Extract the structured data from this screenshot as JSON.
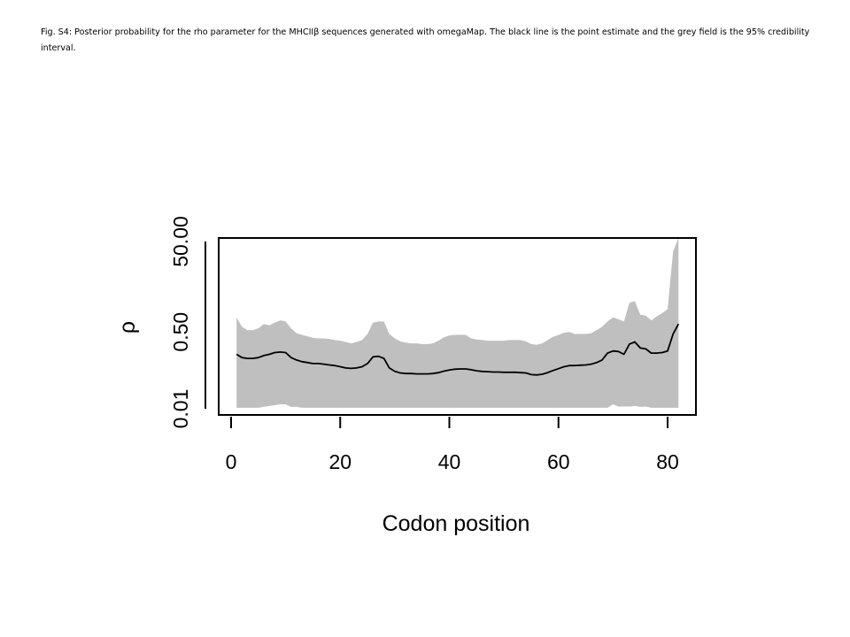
{
  "caption": "Fig. S4:  Posterior probability for the rho parameter for the MHCIIβ  sequences generated with omegaMap.  The black line is the point estimate  and the grey field is the 95% credibility interval.",
  "chart_data": {
    "type": "area",
    "title": "",
    "xlabel": "Codon position",
    "ylabel": "ρ",
    "yscale": "log",
    "xlim": [
      0,
      85
    ],
    "ylim": [
      0.008,
      90
    ],
    "x_ticks": [
      0,
      20,
      40,
      60,
      80
    ],
    "x_tick_labels": [
      "0",
      "20",
      "40",
      "60",
      "80"
    ],
    "y_ticks": [
      0.01,
      0.05,
      0.1,
      0.5,
      1,
      5,
      10,
      50
    ],
    "y_tick_labels": [
      "0.01",
      "",
      "",
      "0.50",
      "",
      "",
      "",
      "50.00"
    ],
    "grid": false,
    "band_color": "#bfbfbf",
    "line_color": "#000000",
    "series": [
      {
        "name": "",
        "role": "point-estimate",
        "x": [
          1,
          2,
          3,
          4,
          5,
          6,
          7,
          8,
          9,
          10,
          11,
          12,
          13,
          14,
          15,
          16,
          17,
          18,
          19,
          20,
          21,
          22,
          23,
          24,
          25,
          26,
          27,
          28,
          29,
          30,
          31,
          32,
          33,
          34,
          35,
          36,
          37,
          38,
          39,
          40,
          41,
          42,
          43,
          44,
          45,
          46,
          47,
          48,
          49,
          50,
          51,
          52,
          53,
          54,
          55,
          56,
          57,
          58,
          59,
          60,
          61,
          62,
          63,
          64,
          65,
          66,
          67,
          68,
          69,
          70,
          71,
          72,
          73,
          74,
          75,
          76,
          77,
          78,
          79,
          80,
          81,
          82
        ],
        "y": [
          0.16,
          0.135,
          0.13,
          0.13,
          0.135,
          0.15,
          0.16,
          0.175,
          0.18,
          0.175,
          0.135,
          0.12,
          0.11,
          0.105,
          0.1,
          0.1,
          0.097,
          0.093,
          0.09,
          0.085,
          0.08,
          0.078,
          0.08,
          0.085,
          0.1,
          0.14,
          0.145,
          0.13,
          0.08,
          0.067,
          0.062,
          0.06,
          0.06,
          0.059,
          0.059,
          0.059,
          0.06,
          0.063,
          0.068,
          0.072,
          0.075,
          0.076,
          0.076,
          0.073,
          0.069,
          0.067,
          0.066,
          0.065,
          0.065,
          0.064,
          0.064,
          0.064,
          0.063,
          0.062,
          0.057,
          0.056,
          0.058,
          0.063,
          0.07,
          0.077,
          0.085,
          0.09,
          0.09,
          0.092,
          0.093,
          0.097,
          0.105,
          0.12,
          0.17,
          0.19,
          0.185,
          0.16,
          0.27,
          0.3,
          0.22,
          0.21,
          0.17,
          0.17,
          0.175,
          0.19,
          0.45,
          0.75
        ]
      },
      {
        "name": "",
        "role": "ci-upper",
        "x": [
          1,
          2,
          3,
          4,
          5,
          6,
          7,
          8,
          9,
          10,
          11,
          12,
          13,
          14,
          15,
          16,
          17,
          18,
          19,
          20,
          21,
          22,
          23,
          24,
          25,
          26,
          27,
          28,
          29,
          30,
          31,
          32,
          33,
          34,
          35,
          36,
          37,
          38,
          39,
          40,
          41,
          42,
          43,
          44,
          45,
          46,
          47,
          48,
          49,
          50,
          51,
          52,
          53,
          54,
          55,
          56,
          57,
          58,
          59,
          60,
          61,
          62,
          63,
          64,
          65,
          66,
          67,
          68,
          69,
          70,
          71,
          72,
          73,
          74,
          75,
          76,
          77,
          78,
          79,
          80,
          81,
          82
        ],
        "y": [
          1.05,
          0.65,
          0.55,
          0.55,
          0.6,
          0.75,
          0.7,
          0.8,
          0.9,
          0.85,
          0.6,
          0.47,
          0.43,
          0.4,
          0.37,
          0.36,
          0.36,
          0.35,
          0.33,
          0.32,
          0.3,
          0.28,
          0.3,
          0.33,
          0.45,
          0.8,
          0.85,
          0.85,
          0.45,
          0.36,
          0.31,
          0.29,
          0.28,
          0.28,
          0.27,
          0.27,
          0.28,
          0.32,
          0.38,
          0.42,
          0.43,
          0.43,
          0.43,
          0.36,
          0.34,
          0.33,
          0.32,
          0.32,
          0.32,
          0.32,
          0.33,
          0.33,
          0.33,
          0.31,
          0.27,
          0.26,
          0.28,
          0.33,
          0.39,
          0.43,
          0.48,
          0.5,
          0.45,
          0.45,
          0.45,
          0.47,
          0.55,
          0.65,
          0.85,
          1.05,
          0.95,
          0.85,
          2.2,
          2.4,
          1.2,
          1.15,
          0.9,
          1.1,
          1.3,
          1.6,
          30.0,
          60.0
        ]
      },
      {
        "name": "",
        "role": "ci-lower",
        "x": [
          1,
          2,
          3,
          4,
          5,
          6,
          7,
          8,
          9,
          10,
          11,
          12,
          13,
          14,
          15,
          16,
          17,
          18,
          19,
          20,
          21,
          22,
          23,
          24,
          25,
          26,
          27,
          28,
          29,
          30,
          31,
          32,
          33,
          34,
          35,
          36,
          37,
          38,
          39,
          40,
          41,
          42,
          43,
          44,
          45,
          46,
          47,
          48,
          49,
          50,
          51,
          52,
          53,
          54,
          55,
          56,
          57,
          58,
          59,
          60,
          61,
          62,
          63,
          64,
          65,
          66,
          67,
          68,
          69,
          70,
          71,
          72,
          73,
          74,
          75,
          76,
          77,
          78,
          79,
          80,
          81,
          82
        ],
        "y": [
          0.0105,
          0.0105,
          0.0105,
          0.0105,
          0.0105,
          0.011,
          0.0115,
          0.012,
          0.0125,
          0.0125,
          0.011,
          0.011,
          0.0105,
          0.0105,
          0.0105,
          0.0105,
          0.0105,
          0.0105,
          0.0105,
          0.0105,
          0.0105,
          0.0105,
          0.0105,
          0.0105,
          0.0105,
          0.0105,
          0.0105,
          0.0105,
          0.0105,
          0.0105,
          0.0105,
          0.0105,
          0.0105,
          0.0105,
          0.0105,
          0.0105,
          0.0105,
          0.0105,
          0.0105,
          0.0105,
          0.0105,
          0.0105,
          0.0105,
          0.0105,
          0.0105,
          0.0105,
          0.0105,
          0.0105,
          0.0105,
          0.0105,
          0.0105,
          0.0105,
          0.0105,
          0.0105,
          0.0105,
          0.0105,
          0.0105,
          0.0105,
          0.0105,
          0.0105,
          0.0105,
          0.0105,
          0.0105,
          0.0105,
          0.0105,
          0.0105,
          0.0105,
          0.0105,
          0.0105,
          0.0125,
          0.0112,
          0.0112,
          0.0112,
          0.0115,
          0.011,
          0.0112,
          0.0105,
          0.0105,
          0.0105,
          0.0105,
          0.0105,
          0.0105
        ]
      }
    ]
  }
}
